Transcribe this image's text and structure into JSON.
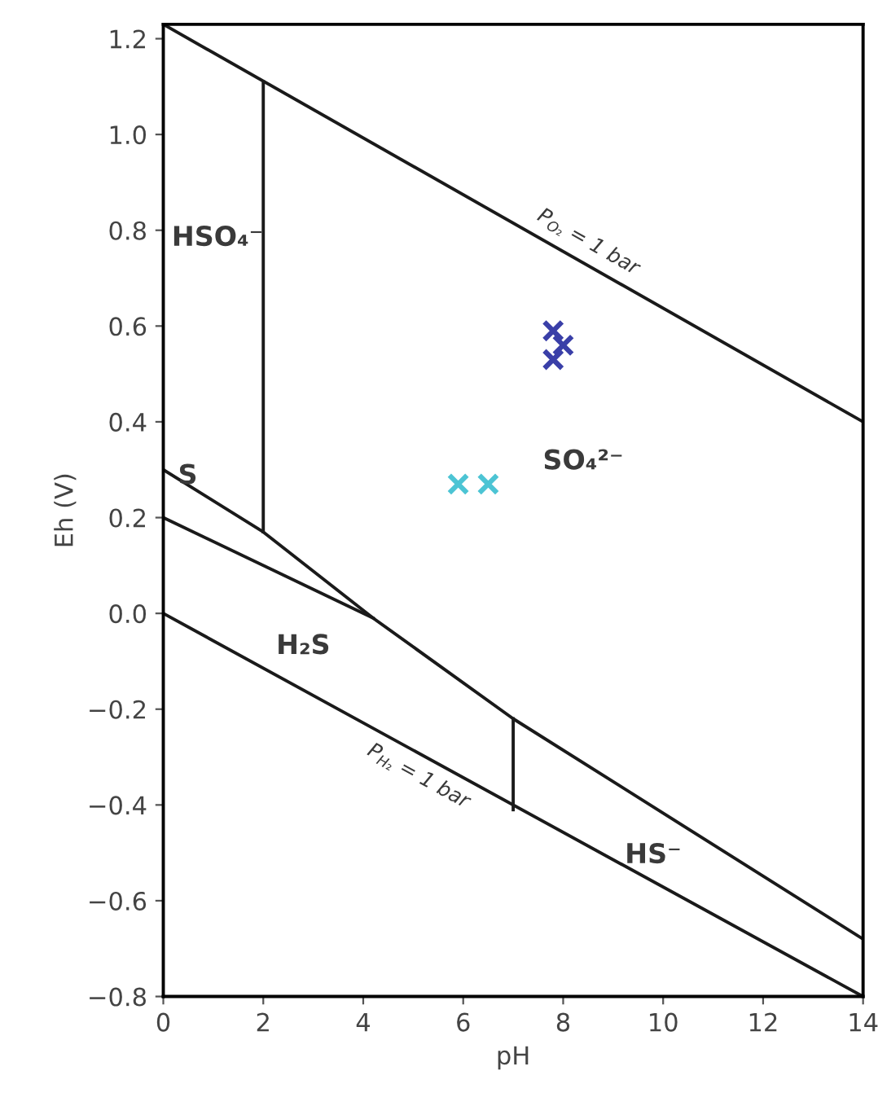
{
  "chart_data": {
    "type": "line",
    "xlabel": "pH",
    "ylabel": "Eh (V)",
    "xlim": [
      0,
      14
    ],
    "ylim": [
      -0.8,
      1.23
    ],
    "xticks": [
      0,
      2,
      4,
      6,
      8,
      10,
      12,
      14
    ],
    "yticks": [
      {
        "value": -0.8,
        "label": "−0.8"
      },
      {
        "value": -0.6,
        "label": "−0.6"
      },
      {
        "value": -0.4,
        "label": "−0.4"
      },
      {
        "value": -0.2,
        "label": "−0.2"
      },
      {
        "value": 0.0,
        "label": "0.0"
      },
      {
        "value": 0.2,
        "label": "0.2"
      },
      {
        "value": 0.4,
        "label": "0.4"
      },
      {
        "value": 0.6,
        "label": "0.6"
      },
      {
        "value": 0.8,
        "label": "0.8"
      },
      {
        "value": 1.0,
        "label": "1.0"
      },
      {
        "value": 1.2,
        "label": "1.2"
      }
    ],
    "grid": false,
    "legend": false,
    "series": [
      {
        "color": "#1a1a1a",
        "x": [
          0,
          14
        ],
        "values": [
          1.23,
          0.4
        ]
      },
      {
        "color": "#1a1a1a",
        "x": [
          0,
          14
        ],
        "values": [
          0.0,
          -0.8
        ]
      },
      {
        "color": "#1a1a1a",
        "x": [
          0,
          2,
          4.2,
          7,
          14
        ],
        "values": [
          0.3,
          0.17,
          -0.01,
          -0.22,
          -0.68
        ]
      },
      {
        "color": "#1a1a1a",
        "x": [
          0,
          4.2
        ],
        "values": [
          0.2,
          -0.01
        ]
      },
      {
        "color": "#1a1a1a",
        "x": [
          2,
          2
        ],
        "values": [
          0.17,
          1.11
        ]
      },
      {
        "color": "#1a1a1a",
        "x": [
          7,
          7
        ],
        "values": [
          -0.22,
          -0.41
        ]
      },
      {
        "type": "scatter",
        "color": "#3a3fa8",
        "marker": "cross",
        "x": [
          7.8,
          8.0,
          7.8
        ],
        "values": [
          0.59,
          0.56,
          0.53
        ]
      },
      {
        "type": "scatter",
        "color": "#4cc4d4",
        "marker": "cross",
        "x": [
          5.9,
          6.5
        ],
        "values": [
          0.27,
          0.27
        ]
      }
    ],
    "annotations": [
      "HSO₄⁻",
      "SO₄²⁻",
      "S",
      "H₂S",
      "HS⁻",
      {
        "text": "P$_{O₂}$ = 1 bar",
        "x": 8.3,
        "y": 0.738
      },
      {
        "text": "P$_{H₂}$ = 1 bar",
        "x": 5.3,
        "y": -0.303
      }
    ]
  }
}
